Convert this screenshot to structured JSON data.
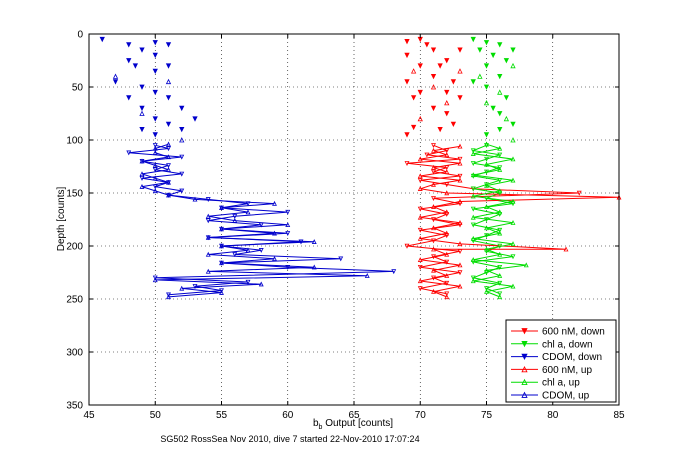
{
  "chart_data": {
    "type": "line",
    "title": "",
    "caption": "SG502 RossSea Nov 2010, dive 7 started 22-Nov-2010 17:07:24",
    "xlabel_main": "b",
    "xlabel_sub": "b",
    "xlabel_rest": " Output [counts]",
    "ylabel": "Depth [counts]",
    "xlim": [
      45,
      85
    ],
    "ylim": [
      350,
      0
    ],
    "y_reversed": true,
    "xticks": [
      "45",
      "50",
      "55",
      "60",
      "65",
      "70",
      "75",
      "80",
      "85"
    ],
    "yticks": [
      "0",
      "50",
      "100",
      "150",
      "200",
      "250",
      "300",
      "350"
    ],
    "grid": true,
    "legend_position": "bottom-right",
    "series": [
      {
        "name": "600 nM, down",
        "color": "#ff0000",
        "marker": "triangle-down",
        "scatter_top": [
          [
            69,
            7
          ],
          [
            69,
            20
          ],
          [
            69,
            45
          ],
          [
            69.5,
            60
          ],
          [
            69,
            95
          ],
          [
            70,
            5
          ],
          [
            70.5,
            10
          ],
          [
            70,
            30
          ],
          [
            70,
            55
          ],
          [
            71,
            15
          ],
          [
            71,
            70
          ],
          [
            71.5,
            30
          ],
          [
            71.5,
            90
          ],
          [
            72,
            25
          ],
          [
            72,
            75
          ],
          [
            72.5,
            45
          ],
          [
            72.5,
            85
          ],
          [
            73,
            15
          ],
          [
            73,
            60
          ],
          [
            69.5,
            88
          ],
          [
            71,
            40
          ],
          [
            72,
            55
          ]
        ],
        "line": [
          [
            71,
            105
          ],
          [
            72,
            110
          ],
          [
            70.5,
            114
          ],
          [
            73,
            118
          ],
          [
            69,
            122
          ],
          [
            72,
            126
          ],
          [
            71,
            130
          ],
          [
            73,
            134
          ],
          [
            70,
            138
          ],
          [
            72,
            142
          ],
          [
            74,
            146
          ],
          [
            82,
            150
          ],
          [
            71,
            155
          ],
          [
            73,
            160
          ],
          [
            70,
            165
          ],
          [
            72,
            170
          ],
          [
            71,
            175
          ],
          [
            73,
            180
          ],
          [
            70,
            185
          ],
          [
            72,
            190
          ],
          [
            71,
            195
          ],
          [
            69,
            200
          ],
          [
            73,
            205
          ],
          [
            71,
            210
          ],
          [
            72,
            215
          ],
          [
            70,
            220
          ],
          [
            73,
            225
          ],
          [
            71,
            230
          ],
          [
            72,
            235
          ],
          [
            70,
            240
          ],
          [
            72,
            245
          ]
        ]
      },
      {
        "name": "chl a, down",
        "color": "#00dd00",
        "marker": "triangle-down",
        "scatter_top": [
          [
            74,
            5
          ],
          [
            74.5,
            15
          ],
          [
            75,
            8
          ],
          [
            75,
            30
          ],
          [
            75,
            50
          ],
          [
            75.5,
            20
          ],
          [
            75.5,
            70
          ],
          [
            76,
            10
          ],
          [
            76,
            40
          ],
          [
            76,
            90
          ],
          [
            76.5,
            25
          ],
          [
            76.5,
            60
          ],
          [
            77,
            15
          ],
          [
            77,
            85
          ],
          [
            74,
            45
          ],
          [
            75,
            95
          ],
          [
            76,
            75
          ]
        ],
        "line": [
          [
            75,
            105
          ],
          [
            74,
            110
          ],
          [
            76,
            114
          ],
          [
            75,
            118
          ],
          [
            74,
            122
          ],
          [
            76,
            126
          ],
          [
            75,
            130
          ],
          [
            74,
            134
          ],
          [
            76,
            138
          ],
          [
            75,
            142
          ],
          [
            74,
            146
          ],
          [
            76,
            150
          ],
          [
            75,
            155
          ],
          [
            77,
            160
          ],
          [
            74,
            165
          ],
          [
            76,
            170
          ],
          [
            75,
            175
          ],
          [
            74,
            180
          ],
          [
            76,
            185
          ],
          [
            75,
            190
          ],
          [
            74,
            195
          ],
          [
            76,
            200
          ],
          [
            75,
            205
          ],
          [
            77,
            210
          ],
          [
            74,
            215
          ],
          [
            76,
            220
          ],
          [
            75,
            225
          ],
          [
            74,
            230
          ],
          [
            76,
            235
          ],
          [
            75,
            240
          ],
          [
            76,
            245
          ]
        ]
      },
      {
        "name": "CDOM, down",
        "color": "#0000cc",
        "marker": "triangle-down",
        "scatter_top": [
          [
            46,
            5
          ],
          [
            47,
            45
          ],
          [
            48,
            10
          ],
          [
            48,
            25
          ],
          [
            48,
            60
          ],
          [
            48.5,
            30
          ],
          [
            49,
            15
          ],
          [
            49,
            50
          ],
          [
            49,
            70
          ],
          [
            50,
            8
          ],
          [
            50,
            20
          ],
          [
            50,
            35
          ],
          [
            50,
            55
          ],
          [
            50,
            80
          ],
          [
            50,
            95
          ],
          [
            51,
            10
          ],
          [
            51,
            30
          ],
          [
            51,
            60
          ],
          [
            51,
            85
          ],
          [
            52,
            70
          ],
          [
            52,
            90
          ],
          [
            53,
            80
          ],
          [
            49,
            90
          ]
        ],
        "line": [
          [
            50,
            105
          ],
          [
            51,
            108
          ],
          [
            48,
            112
          ],
          [
            52,
            116
          ],
          [
            49,
            120
          ],
          [
            51,
            124
          ],
          [
            50,
            128
          ],
          [
            52,
            132
          ],
          [
            49,
            136
          ],
          [
            51,
            140
          ],
          [
            50,
            144
          ],
          [
            52,
            148
          ],
          [
            51,
            152
          ],
          [
            54,
            156
          ],
          [
            57,
            160
          ],
          [
            55,
            164
          ],
          [
            60,
            168
          ],
          [
            56,
            172
          ],
          [
            54,
            176
          ],
          [
            58,
            180
          ],
          [
            55,
            184
          ],
          [
            60,
            188
          ],
          [
            54,
            192
          ],
          [
            61,
            196
          ],
          [
            55,
            200
          ],
          [
            58,
            204
          ],
          [
            56,
            208
          ],
          [
            64,
            212
          ],
          [
            55,
            216
          ],
          [
            60,
            220
          ],
          [
            68,
            224
          ],
          [
            50,
            230
          ],
          [
            57,
            234
          ],
          [
            53,
            238
          ],
          [
            55,
            242
          ],
          [
            51,
            246
          ]
        ]
      },
      {
        "name": "600 nM, up",
        "color": "#ff0000",
        "marker": "triangle-up",
        "scatter_top": [
          [
            69.5,
            35
          ],
          [
            70,
            80
          ],
          [
            71,
            50
          ],
          [
            72,
            65
          ],
          [
            73,
            35
          ]
        ],
        "line": [
          [
            72,
            248
          ],
          [
            71,
            243
          ],
          [
            73,
            238
          ],
          [
            70,
            233
          ],
          [
            72,
            228
          ],
          [
            71,
            223
          ],
          [
            73,
            218
          ],
          [
            70,
            213
          ],
          [
            72,
            208
          ],
          [
            71,
            203
          ],
          [
            81,
            203
          ],
          [
            73,
            198
          ],
          [
            70,
            193
          ],
          [
            72,
            188
          ],
          [
            71,
            183
          ],
          [
            73,
            178
          ],
          [
            70,
            173
          ],
          [
            72,
            168
          ],
          [
            71,
            163
          ],
          [
            73,
            158
          ],
          [
            85,
            154
          ],
          [
            72,
            150
          ],
          [
            70,
            146
          ],
          [
            71,
            142
          ],
          [
            73,
            138
          ],
          [
            70,
            134
          ],
          [
            72,
            130
          ],
          [
            71,
            126
          ],
          [
            73,
            122
          ],
          [
            70,
            118
          ],
          [
            72,
            114
          ],
          [
            71,
            110
          ],
          [
            73,
            106
          ]
        ]
      },
      {
        "name": "chl a, up",
        "color": "#00dd00",
        "marker": "triangle-up",
        "scatter_top": [
          [
            74.5,
            40
          ],
          [
            75,
            65
          ],
          [
            76,
            55
          ],
          [
            77,
            30
          ],
          [
            77,
            100
          ],
          [
            76.5,
            80
          ]
        ],
        "line": [
          [
            76,
            248
          ],
          [
            75,
            243
          ],
          [
            77,
            238
          ],
          [
            74,
            233
          ],
          [
            76,
            228
          ],
          [
            75,
            223
          ],
          [
            78,
            218
          ],
          [
            74,
            213
          ],
          [
            76,
            208
          ],
          [
            75,
            203
          ],
          [
            77,
            198
          ],
          [
            74,
            193
          ],
          [
            76,
            188
          ],
          [
            75,
            183
          ],
          [
            77,
            178
          ],
          [
            74,
            173
          ],
          [
            76,
            168
          ],
          [
            75,
            163
          ],
          [
            77,
            158
          ],
          [
            74,
            153
          ],
          [
            76,
            148
          ],
          [
            75,
            143
          ],
          [
            77,
            138
          ],
          [
            74,
            133
          ],
          [
            76,
            128
          ],
          [
            75,
            123
          ],
          [
            77,
            118
          ],
          [
            74,
            113
          ],
          [
            76,
            108
          ],
          [
            75,
            104
          ]
        ]
      },
      {
        "name": "CDOM, up",
        "color": "#0000cc",
        "marker": "triangle-up",
        "scatter_top": [
          [
            47,
            40
          ],
          [
            49,
            75
          ],
          [
            51,
            45
          ],
          [
            52,
            100
          ]
        ],
        "line": [
          [
            51,
            248
          ],
          [
            55,
            244
          ],
          [
            52,
            240
          ],
          [
            58,
            236
          ],
          [
            50,
            232
          ],
          [
            66,
            228
          ],
          [
            54,
            224
          ],
          [
            62,
            220
          ],
          [
            55,
            216
          ],
          [
            59,
            212
          ],
          [
            54,
            208
          ],
          [
            57,
            204
          ],
          [
            55,
            200
          ],
          [
            62,
            196
          ],
          [
            54,
            192
          ],
          [
            59,
            188
          ],
          [
            55,
            184
          ],
          [
            60,
            180
          ],
          [
            56,
            176
          ],
          [
            54,
            172
          ],
          [
            57,
            168
          ],
          [
            55,
            164
          ],
          [
            59,
            160
          ],
          [
            53,
            156
          ],
          [
            51,
            152
          ],
          [
            50,
            148
          ],
          [
            49,
            144
          ],
          [
            51,
            140
          ],
          [
            50,
            136
          ],
          [
            49,
            132
          ],
          [
            51,
            128
          ],
          [
            50,
            124
          ],
          [
            49,
            120
          ],
          [
            51,
            116
          ],
          [
            50,
            112
          ],
          [
            50,
            108
          ],
          [
            51,
            104
          ]
        ]
      }
    ]
  }
}
